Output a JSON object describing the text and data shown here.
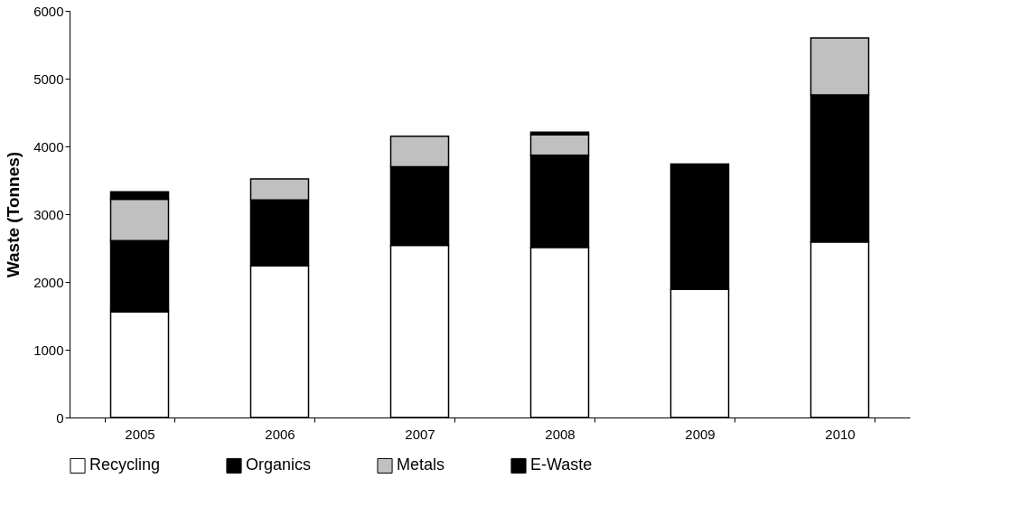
{
  "chart_data": {
    "type": "bar",
    "stacked": true,
    "ylabel": "Waste (Tonnes)",
    "categories": [
      "2005",
      "2006",
      "2007",
      "2008",
      "2009",
      "2010"
    ],
    "series": [
      {
        "name": "Recycling",
        "color": "#ffffff",
        "values": [
          1560,
          2240,
          2540,
          2510,
          1890,
          2590
        ]
      },
      {
        "name": "Organics",
        "color": "#000000",
        "values": [
          1050,
          970,
          1160,
          1360,
          1850,
          2170
        ]
      },
      {
        "name": "Metals",
        "color": "#c0c0c0",
        "values": [
          610,
          310,
          450,
          300,
          null,
          840
        ]
      },
      {
        "name": "E-Waste",
        "color": "#000000",
        "values": [
          110,
          null,
          null,
          40,
          null,
          null
        ]
      }
    ],
    "ylim": [
      0,
      6000
    ],
    "yticks": [
      0,
      1000,
      2000,
      3000,
      4000,
      5000,
      6000
    ],
    "grid": false,
    "legend": "bottom"
  }
}
